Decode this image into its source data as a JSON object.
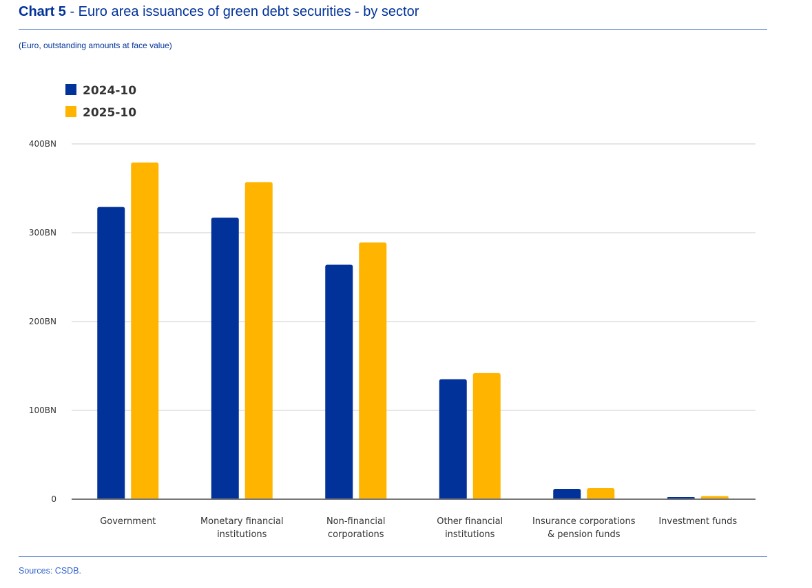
{
  "header": {
    "chart_number": "Chart 5",
    "title_rest": " - Euro area issuances of green debt securities - by sector",
    "subtitle": "(Euro, outstanding amounts at face value)"
  },
  "footer": {
    "sources": "Sources: CSDB."
  },
  "chart_data": {
    "type": "bar",
    "title": "Chart 5 - Euro area issuances of green debt securities - by sector",
    "subtitle": "(Euro, outstanding amounts at face value)",
    "xlabel": "",
    "ylabel": "",
    "ylim": [
      0,
      400
    ],
    "unit": "BN",
    "yticks": [
      0,
      100,
      200,
      300,
      400
    ],
    "ytick_labels": [
      "0",
      "100BN",
      "200BN",
      "300BN",
      "400BN"
    ],
    "grid": true,
    "legend_position": "top-left",
    "categories": [
      [
        "Government"
      ],
      [
        "Monetary financial",
        "institutions"
      ],
      [
        "Non-financial",
        "corporations"
      ],
      [
        "Other financial",
        "institutions"
      ],
      [
        "Insurance corporations",
        "& pension funds"
      ],
      [
        "Investment funds"
      ]
    ],
    "series": [
      {
        "name": "2024-10",
        "color": "#003299",
        "values": [
          329,
          317,
          264,
          135,
          11.6,
          2.3
        ]
      },
      {
        "name": "2025-10",
        "color": "#FFB400",
        "values": [
          379,
          357,
          289,
          142,
          12.4,
          3.5
        ]
      }
    ],
    "source": "Sources: CSDB."
  }
}
